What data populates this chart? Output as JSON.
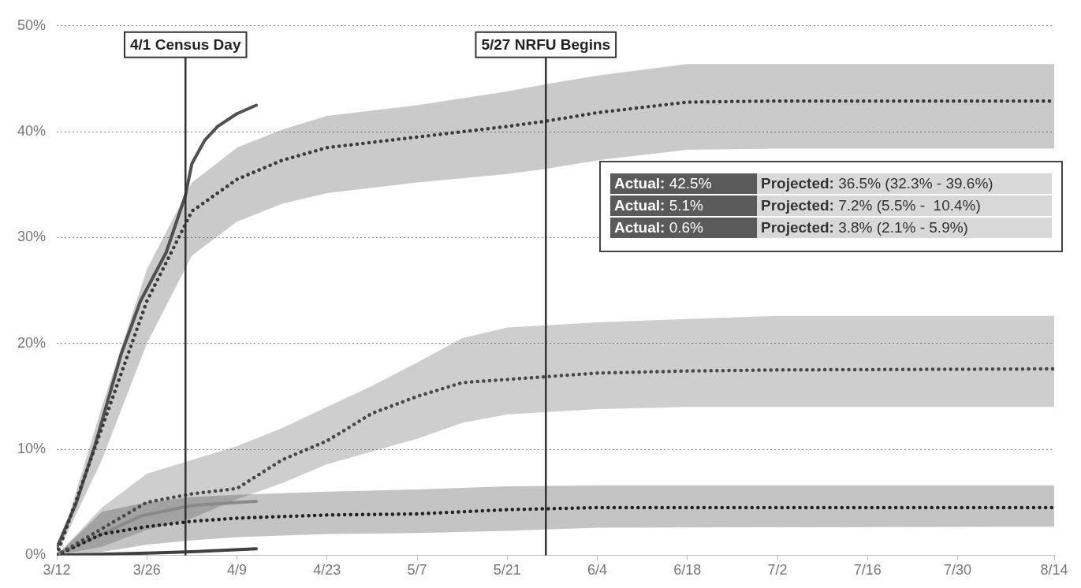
{
  "chart_data": {
    "type": "line",
    "xlim": [
      "--03-12",
      "--08-14"
    ],
    "xticks": [
      {
        "value": "--03-12",
        "label": "3/12"
      },
      {
        "value": "--03-26",
        "label": "3/26"
      },
      {
        "value": "--04-09",
        "label": "4/9"
      },
      {
        "value": "--04-23",
        "label": "4/23"
      },
      {
        "value": "--05-07",
        "label": "5/7"
      },
      {
        "value": "--05-21",
        "label": "5/21"
      },
      {
        "value": "--06-04",
        "label": "6/4"
      },
      {
        "value": "--06-18",
        "label": "6/18"
      },
      {
        "value": "--07-02",
        "label": "7/2"
      },
      {
        "value": "--07-16",
        "label": "7/16"
      },
      {
        "value": "--07-30",
        "label": "7/30"
      },
      {
        "value": "--08-14",
        "label": "8/14"
      }
    ],
    "ylim": [
      0,
      50
    ],
    "yticks": [
      {
        "value": 0,
        "label": "0%"
      },
      {
        "value": 10,
        "label": "10%"
      },
      {
        "value": 20,
        "label": "20%"
      },
      {
        "value": 30,
        "label": "30%"
      },
      {
        "value": 40,
        "label": "40%"
      },
      {
        "value": 50,
        "label": "50%"
      }
    ],
    "grid": "y",
    "legend": false,
    "marker": "none",
    "series": [
      {
        "line_style": "dotted",
        "color": "#3a3a3a",
        "x": [
          "--03-12",
          "--03-19",
          "--03-26",
          "--04-02",
          "--04-09",
          "--04-16",
          "--04-23",
          "--05-07",
          "--05-21",
          "--05-27",
          "--06-04",
          "--06-18",
          "--07-02",
          "--07-16",
          "--07-30",
          "--08-14"
        ],
        "values": [
          0,
          12,
          24,
          32.5,
          35.5,
          37.3,
          38.5,
          39.5,
          40.5,
          41,
          41.8,
          42.8,
          42.9,
          42.9,
          42.9,
          42.9
        ],
        "lower": [
          0,
          9,
          20,
          28.3,
          31.5,
          33.2,
          34.2,
          35.2,
          36,
          36.5,
          37.3,
          38.3,
          38.4,
          38.4,
          38.4,
          38.4
        ],
        "upper": [
          0,
          14,
          27,
          35.2,
          38.5,
          40.2,
          41.5,
          42.5,
          43.8,
          44.5,
          45.3,
          46.4,
          46.4,
          46.4,
          46.4,
          46.4
        ]
      },
      {
        "line_style": "dotted",
        "color": "#484848",
        "x": [
          "--03-12",
          "--03-19",
          "--03-26",
          "--04-02",
          "--04-09",
          "--04-16",
          "--04-23",
          "--04-30",
          "--05-07",
          "--05-14",
          "--05-21",
          "--06-04",
          "--06-18",
          "--07-02",
          "--08-14"
        ],
        "values": [
          0,
          2.5,
          5,
          5.8,
          6.3,
          9,
          10.8,
          13.4,
          15,
          16.3,
          16.6,
          17.2,
          17.4,
          17.5,
          17.6
        ],
        "lower": [
          0,
          0.8,
          2.4,
          3.5,
          5.3,
          6.8,
          8.6,
          9.8,
          11,
          12.5,
          13.3,
          13.8,
          14,
          14,
          14
        ],
        "upper": [
          0,
          4.5,
          7.7,
          9,
          10.3,
          12,
          14,
          16,
          18.2,
          20.5,
          21.5,
          22,
          22.3,
          22.6,
          22.6
        ]
      },
      {
        "line_style": "dotted",
        "color": "#222222",
        "x": [
          "--03-12",
          "--03-19",
          "--03-26",
          "--04-02",
          "--04-09",
          "--04-23",
          "--05-07",
          "--05-21",
          "--06-04",
          "--08-14"
        ],
        "values": [
          0,
          2,
          2.7,
          3.2,
          3.5,
          3.8,
          3.9,
          4.3,
          4.5,
          4.5
        ],
        "lower": [
          0,
          0.3,
          1,
          1.4,
          1.7,
          2,
          2.1,
          2.3,
          2.6,
          2.7
        ],
        "upper": [
          0,
          4.1,
          5,
          5.5,
          5.7,
          6,
          6.2,
          6.5,
          6.6,
          6.6
        ]
      },
      {
        "line_style": "solid",
        "color": "#505050",
        "x": [
          "--03-12",
          "--03-15",
          "--03-18",
          "--03-22",
          "--03-25",
          "--03-29",
          "--04-01",
          "--04-02",
          "--04-04",
          "--04-06",
          "--04-09",
          "--04-12"
        ],
        "values": [
          0.7,
          4.9,
          10.5,
          19,
          24,
          28.6,
          34,
          37,
          39.2,
          40.5,
          41.7,
          42.5
        ]
      },
      {
        "line_style": "solid",
        "color": "#8a8a8a",
        "x": [
          "--03-12",
          "--03-18",
          "--03-25",
          "--04-02",
          "--04-12"
        ],
        "values": [
          0.1,
          1.7,
          3.7,
          4.7,
          5.1
        ]
      },
      {
        "line_style": "solid",
        "color": "#404040",
        "x": [
          "--03-12",
          "--03-26",
          "--04-01",
          "--04-12"
        ],
        "values": [
          0,
          0.2,
          0.3,
          0.6
        ]
      }
    ],
    "ref_lines": [
      {
        "axis": "x",
        "value": "--04-01",
        "label": "4/1 Census Day",
        "color": "#333333"
      },
      {
        "axis": "x",
        "value": "--05-27",
        "label": "5/27 NRFU Begins",
        "color": "#333333"
      }
    ],
    "annotations": [
      "Actual: 42.5%",
      "Projected: 36.5% (32.3% - 39.6%)",
      "Actual: 5.1%",
      "Projected: 7.2% (5.5% -  10.4%)",
      "Actual: 0.6%",
      "Projected: 3.8% (2.1% - 5.9%)"
    ]
  }
}
